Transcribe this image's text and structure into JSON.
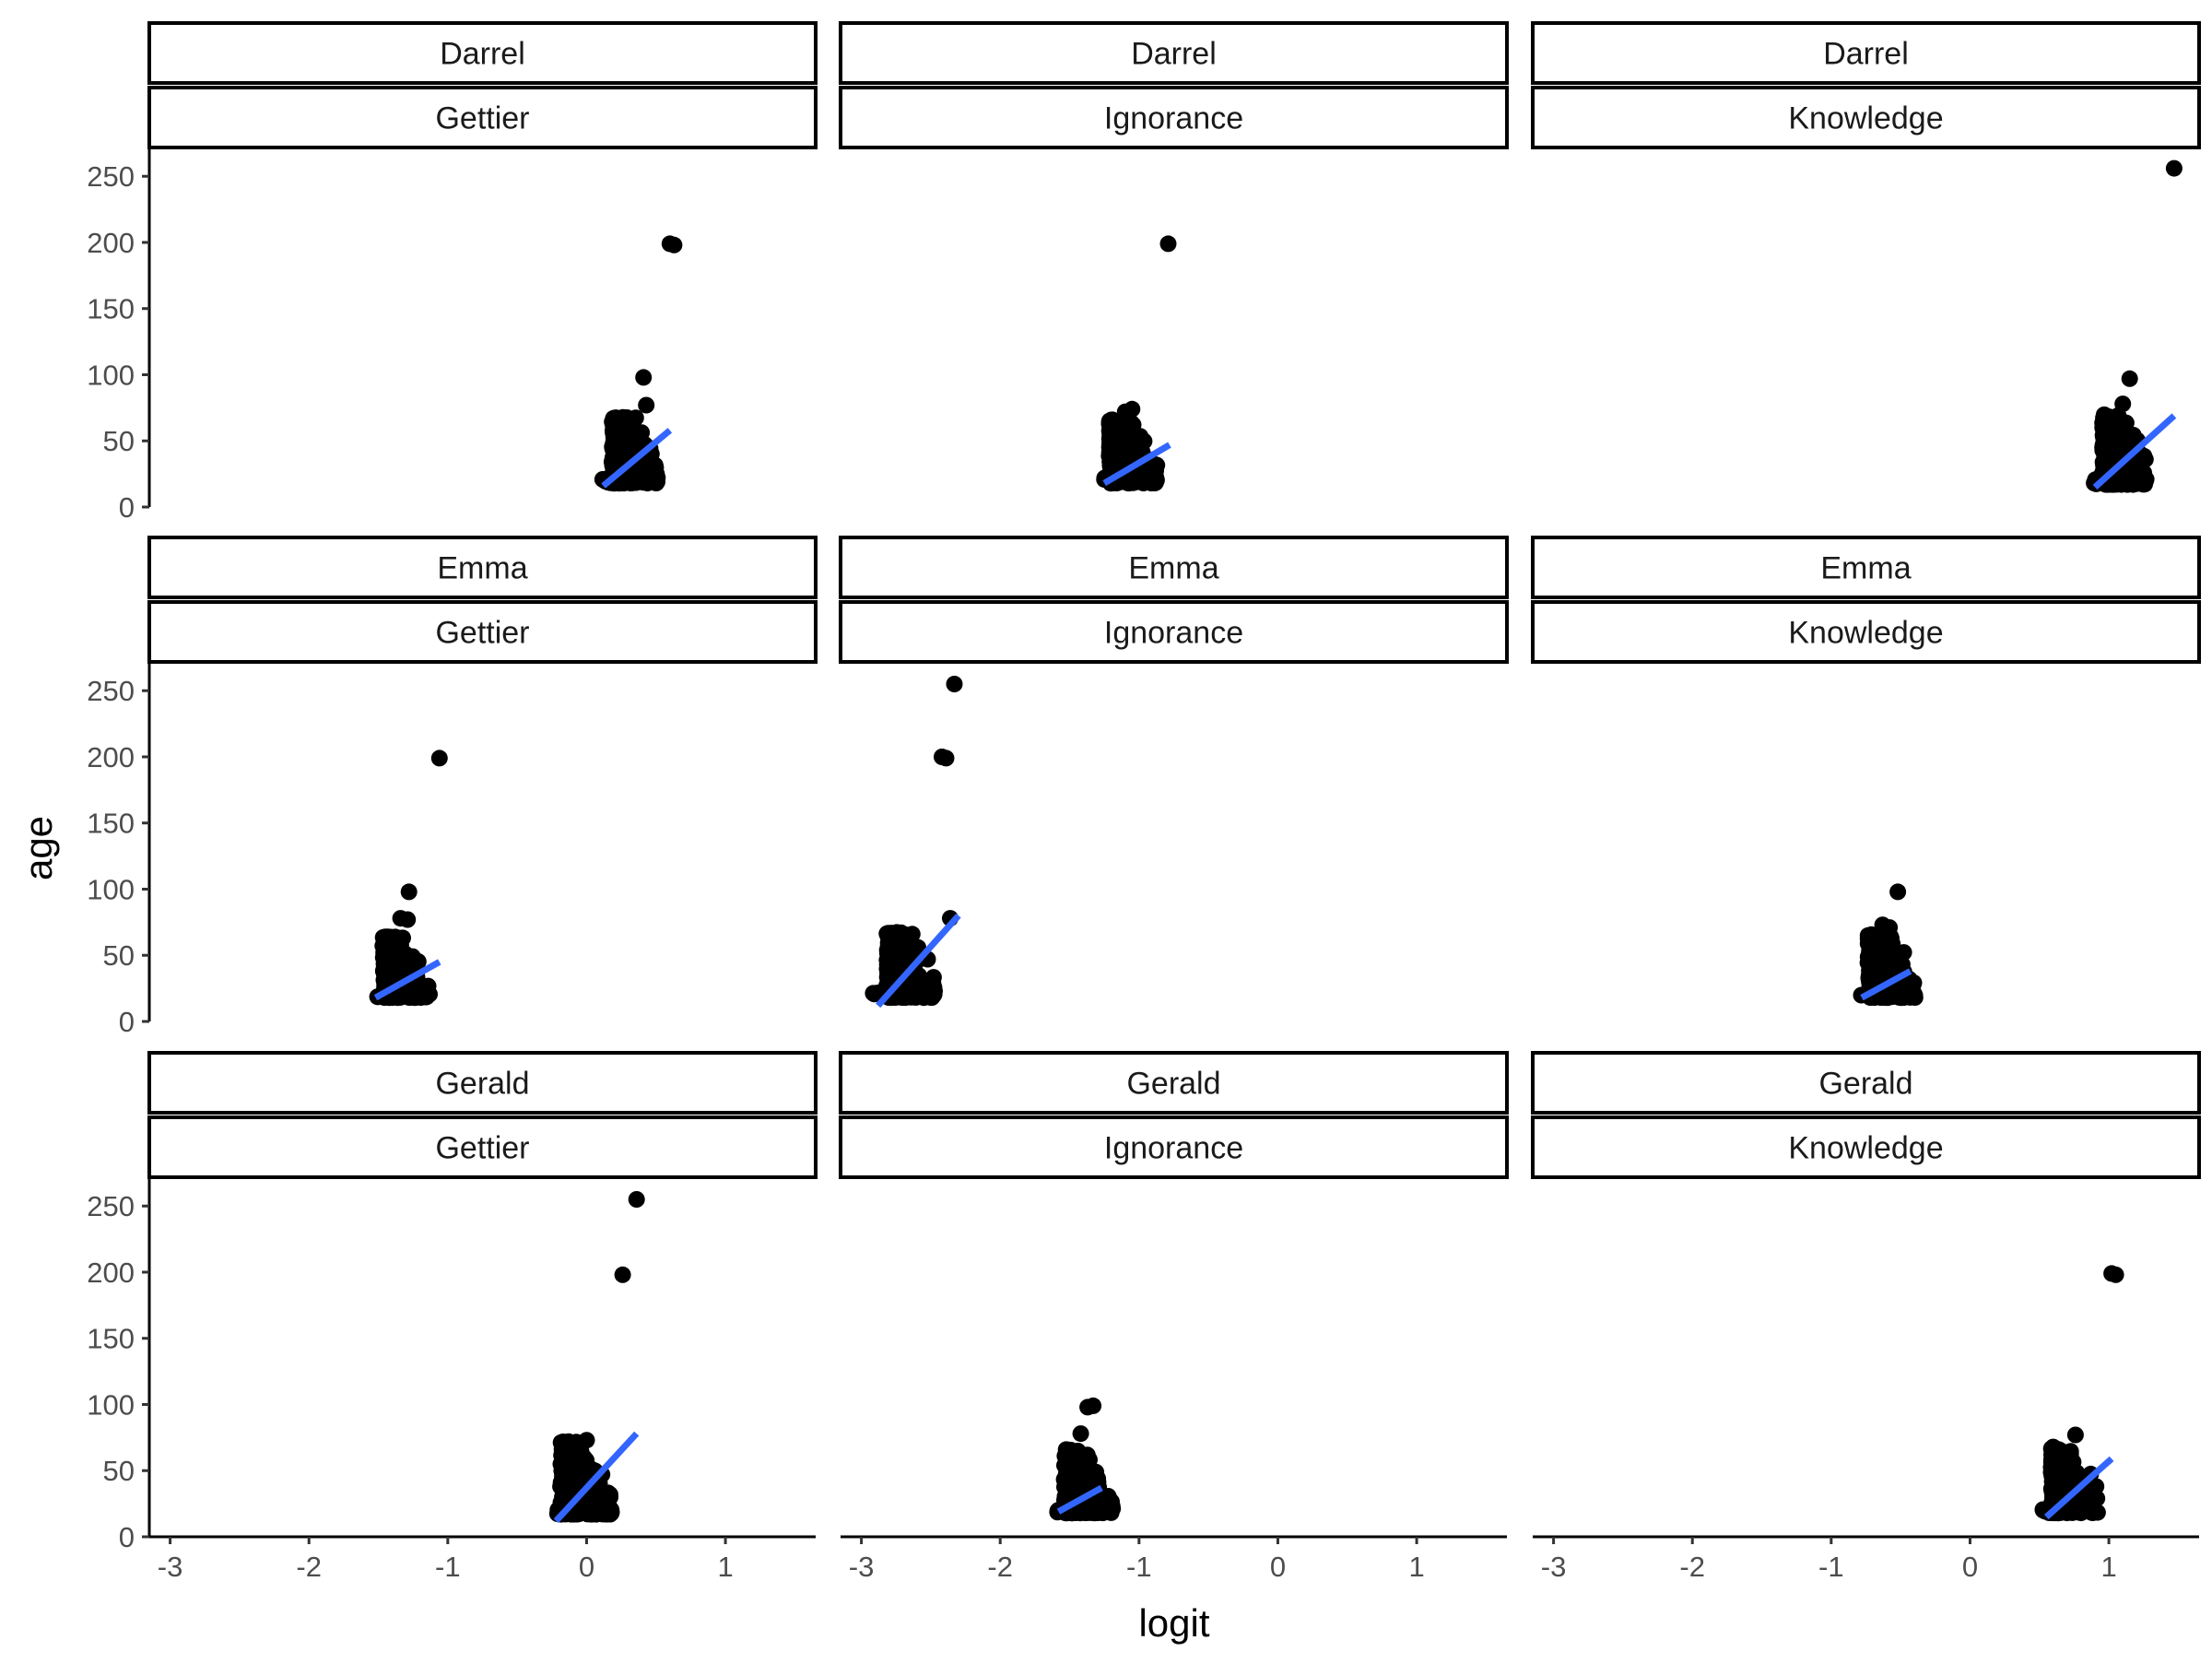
{
  "chart_data": {
    "type": "scatter",
    "title": "",
    "xlabel": "logit",
    "ylabel": "age",
    "xlim": [
      -3.15,
      1.65
    ],
    "ylim": [
      0,
      262
    ],
    "xticks": [
      -3,
      -2,
      -1,
      0,
      1
    ],
    "xtick_labels": [
      "-3",
      "-2",
      "-1",
      "0",
      "1"
    ],
    "yticks": [
      0,
      50,
      100,
      150,
      200,
      250
    ],
    "ytick_labels": [
      "0",
      "50",
      "100",
      "150",
      "200",
      "250"
    ],
    "grid": false,
    "legend": "none",
    "facet_rows": [
      "Darrel",
      "Emma",
      "Gerald"
    ],
    "facet_cols": [
      "Gettier",
      "Ignorance",
      "Knowledge"
    ],
    "colors": {
      "points": "#000000",
      "fit_line": "#3366FF",
      "strip_border": "#000000",
      "axis": "#000000"
    },
    "panels": [
      {
        "row": "Darrel",
        "col": "Gettier",
        "cluster": {
          "x_range": [
            0.09,
            0.51
          ],
          "y_range": [
            18,
            70
          ],
          "density_peak_x": 0.2
        },
        "points": [
          [
            0.6,
            199
          ],
          [
            0.63,
            198
          ],
          [
            0.41,
            98
          ],
          [
            0.43,
            77
          ]
        ],
        "fit": {
          "x": [
            0.12,
            0.6
          ],
          "y": [
            16,
            58
          ]
        }
      },
      {
        "row": "Darrel",
        "col": "Ignorance",
        "cluster": {
          "x_range": [
            -1.27,
            -0.87
          ],
          "y_range": [
            18,
            66
          ],
          "density_peak_x": -1.2
        },
        "points": [
          [
            -0.79,
            199
          ],
          [
            -1.05,
            74
          ],
          [
            -1.1,
            72
          ]
        ],
        "fit": {
          "x": [
            -1.25,
            -0.78
          ],
          "y": [
            18,
            47
          ]
        }
      },
      {
        "row": "Darrel",
        "col": "Knowledge",
        "cluster": {
          "x_range": [
            0.88,
            1.27
          ],
          "y_range": [
            17,
            70
          ],
          "density_peak_x": 0.97
        },
        "points": [
          [
            1.47,
            256
          ],
          [
            1.15,
            97
          ],
          [
            1.1,
            78
          ]
        ],
        "fit": {
          "x": [
            0.9,
            1.47
          ],
          "y": [
            15,
            69
          ]
        }
      },
      {
        "row": "Emma",
        "col": "Gettier",
        "cluster": {
          "x_range": [
            -1.52,
            -1.13
          ],
          "y_range": [
            18,
            64
          ],
          "density_peak_x": -1.45
        },
        "points": [
          [
            -1.06,
            199
          ],
          [
            -1.28,
            98
          ],
          [
            -1.34,
            78
          ],
          [
            -1.29,
            77
          ]
        ],
        "fit": {
          "x": [
            -1.52,
            -1.06
          ],
          "y": [
            18,
            45
          ]
        }
      },
      {
        "row": "Emma",
        "col": "Ignorance",
        "cluster": {
          "x_range": [
            -2.92,
            -2.47
          ],
          "y_range": [
            18,
            68
          ],
          "density_peak_x": -2.8
        },
        "points": [
          [
            -2.33,
            255
          ],
          [
            -2.42,
            200
          ],
          [
            -2.39,
            199
          ],
          [
            -2.36,
            78
          ]
        ],
        "fit": {
          "x": [
            -2.88,
            -2.3
          ],
          "y": [
            12,
            80
          ]
        }
      },
      {
        "row": "Emma",
        "col": "Knowledge",
        "cluster": {
          "x_range": [
            -0.79,
            -0.39
          ],
          "y_range": [
            18,
            66
          ],
          "density_peak_x": -0.72
        },
        "points": [
          [
            -0.52,
            98
          ],
          [
            -0.63,
            73
          ],
          [
            -0.58,
            71
          ]
        ],
        "fit": {
          "x": [
            -0.78,
            -0.43
          ],
          "y": [
            18,
            38
          ]
        }
      },
      {
        "row": "Gerald",
        "col": "Gettier",
        "cluster": {
          "x_range": [
            -0.24,
            0.18
          ],
          "y_range": [
            17,
            72
          ],
          "density_peak_x": -0.17
        },
        "points": [
          [
            0.36,
            255
          ],
          [
            0.26,
            198
          ],
          [
            0.0,
            73
          ],
          [
            -0.05,
            71
          ]
        ],
        "fit": {
          "x": [
            -0.22,
            0.36
          ],
          "y": [
            12,
            78
          ]
        }
      },
      {
        "row": "Gerald",
        "col": "Ignorance",
        "cluster": {
          "x_range": [
            -1.59,
            -1.19
          ],
          "y_range": [
            18,
            66
          ],
          "density_peak_x": -1.52
        },
        "points": [
          [
            -1.33,
            99
          ],
          [
            -1.37,
            98
          ],
          [
            -1.42,
            78
          ]
        ],
        "fit": {
          "x": [
            -1.58,
            -1.27
          ],
          "y": [
            19,
            37
          ]
        }
      },
      {
        "row": "Gerald",
        "col": "Knowledge",
        "cluster": {
          "x_range": [
            0.52,
            0.92
          ],
          "y_range": [
            18,
            68
          ],
          "density_peak_x": 0.6
        },
        "points": [
          [
            1.02,
            199
          ],
          [
            1.05,
            198
          ],
          [
            0.76,
            77
          ]
        ],
        "fit": {
          "x": [
            0.55,
            1.02
          ],
          "y": [
            15,
            59
          ]
        }
      }
    ]
  }
}
